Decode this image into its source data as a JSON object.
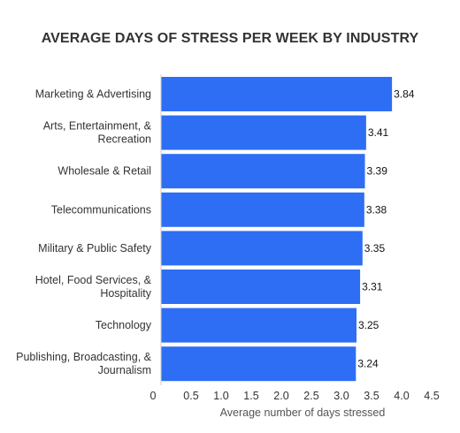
{
  "chart_data": {
    "type": "bar",
    "orientation": "horizontal",
    "title": "AVERAGE DAYS OF STRESS PER WEEK BY INDUSTRY",
    "xlabel": "Average number of days stressed",
    "ylabel": "",
    "categories": [
      [
        "Marketing & Advertising"
      ],
      [
        "Arts, Entertainment, &",
        "Recreation"
      ],
      [
        "Wholesale & Retail"
      ],
      [
        "Telecommunications"
      ],
      [
        "Military & Public Safety"
      ],
      [
        "Hotel, Food Services, &",
        "Hospitality"
      ],
      [
        "Technology"
      ],
      [
        "Publishing, Broadcasting, &",
        "Journalism"
      ]
    ],
    "values": [
      3.84,
      3.41,
      3.39,
      3.38,
      3.35,
      3.31,
      3.25,
      3.24
    ],
    "value_labels": [
      "3.84",
      "3.41",
      "3.39",
      "3.38",
      "3.35",
      "3.31",
      "3.25",
      "3.24"
    ],
    "xlim": [
      0,
      4.5
    ],
    "xticks": [
      "0",
      "0.5",
      "1.0",
      "1.5",
      "2.0",
      "2.5",
      "3.0",
      "3.5",
      "4.0",
      "4.5"
    ],
    "grid": false,
    "bar_color": "#2e6ef5"
  }
}
